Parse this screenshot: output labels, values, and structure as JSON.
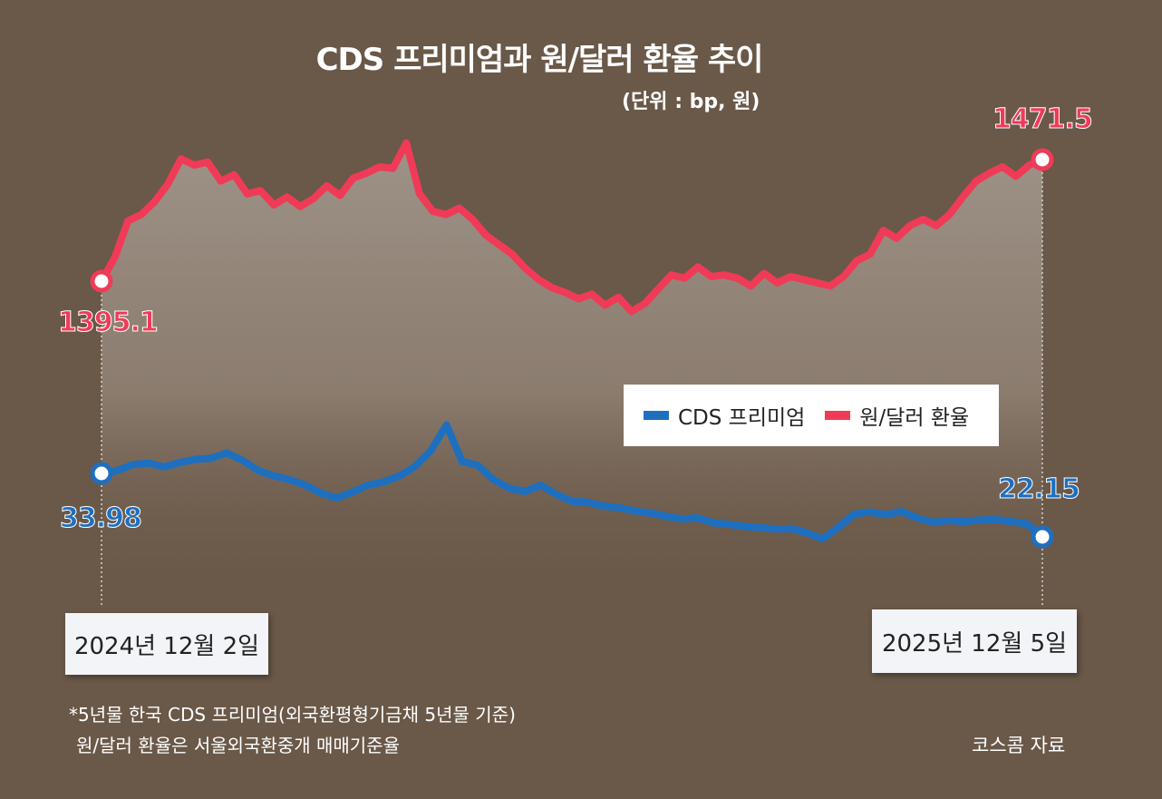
{
  "title": "CDS 프리미엄과 원/달러 환율 추이",
  "unit": "(단위 : bp, 원)",
  "legend": [
    {
      "label": "CDS 프리미엄",
      "color": "#1f6fbf"
    },
    {
      "label": "원/달러 환율",
      "color": "#ef3b57"
    }
  ],
  "dates": {
    "start": "2024년 12월 2일",
    "end": "2025년 12월 5일"
  },
  "labels": {
    "fx_start": "1395.1",
    "fx_end": "1471.5",
    "cds_start": "33.98",
    "cds_end": "22.15"
  },
  "notes": [
    "*5년물 한국 CDS 프리미엄(외국환평형기금채 5년물 기준)",
    "원/달러 환율은 서울외국환중개 매매기준율"
  ],
  "source": "코스콤 자료",
  "colors": {
    "background": "#6a5848",
    "fx": "#ef3b57",
    "cds": "#1f6fbf"
  },
  "chart_data": {
    "type": "line",
    "x_range": [
      "2024-12-02",
      "2025-12-05"
    ],
    "series": [
      {
        "name": "원/달러 환율",
        "color": "#ef3b57",
        "values": [
          1395.1,
          1410,
          1433,
          1437,
          1445,
          1456,
          1472,
          1468,
          1470,
          1458,
          1462,
          1450,
          1452,
          1443,
          1448,
          1442,
          1447,
          1455,
          1449,
          1460,
          1463,
          1467,
          1466,
          1482,
          1450,
          1439,
          1437,
          1441,
          1434,
          1424,
          1418,
          1412,
          1403,
          1396,
          1391,
          1388,
          1384,
          1387,
          1380,
          1385,
          1376,
          1381,
          1390,
          1399,
          1397,
          1404,
          1398,
          1399,
          1397,
          1392,
          1400,
          1394,
          1398,
          1396,
          1394,
          1392,
          1398,
          1408,
          1412,
          1427,
          1422,
          1430,
          1434,
          1430,
          1437,
          1448,
          1458,
          1463,
          1467,
          1461,
          1468,
          1471.5
        ]
      },
      {
        "name": "CDS 프리미엄",
        "color": "#1f6fbf",
        "values": [
          33.98,
          34.5,
          35.6,
          35.9,
          35.2,
          36.0,
          36.6,
          36.8,
          37.8,
          36.4,
          34.5,
          33.5,
          32.8,
          31.8,
          30.3,
          29.4,
          30.5,
          31.8,
          32.4,
          33.5,
          35.3,
          38.2,
          43.0,
          36.2,
          35.5,
          32.8,
          31.2,
          30.6,
          31.8,
          30.1,
          28.8,
          28.6,
          27.9,
          27.6,
          27.0,
          26.6,
          26.0,
          25.5,
          25.7,
          24.8,
          24.5,
          24.1,
          23.9,
          23.6,
          23.7,
          22.9,
          21.8,
          24.0,
          26.4,
          26.8,
          26.3,
          26.9,
          25.7,
          24.9,
          25.2,
          25.0,
          25.3,
          25.4,
          25.0,
          24.6,
          22.15
        ]
      }
    ],
    "ylim_note": "두 시계열 각각 별도 축척, 축 눈금 미표시"
  }
}
